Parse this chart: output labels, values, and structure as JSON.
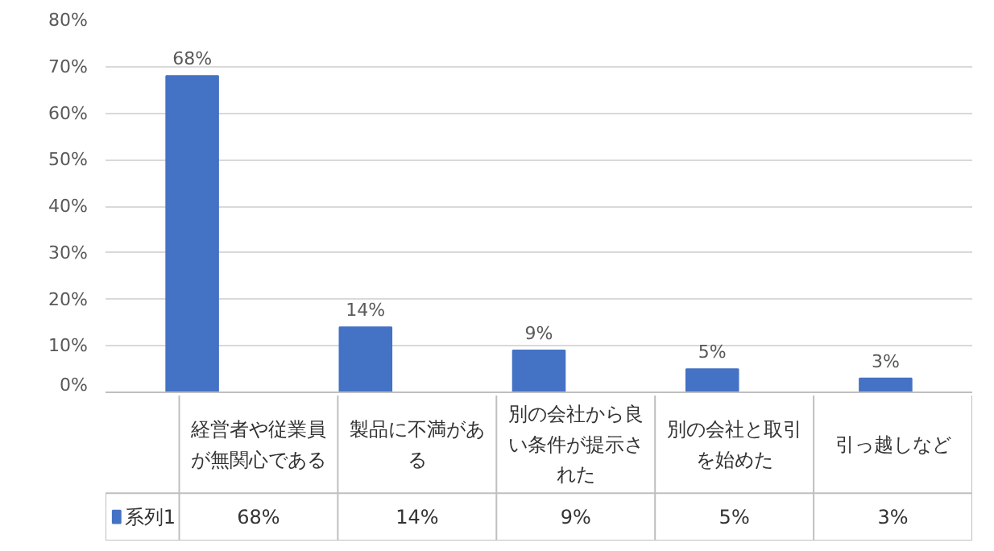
{
  "chart_data": {
    "type": "bar",
    "categories": [
      "経営者や従業員が無関心である",
      "製品に不満がある",
      "別の会社から良い条件が提示された",
      "別の会社と取引を始めた",
      "引っ越しなど"
    ],
    "series": [
      {
        "name": "系列1",
        "color": "#4472c4",
        "values": [
          68,
          14,
          9,
          5,
          3
        ],
        "value_labels": [
          "68%",
          "14%",
          "9%",
          "5%",
          "3%"
        ]
      }
    ],
    "ylim": [
      0,
      80
    ],
    "yticks": [
      {
        "value": 0,
        "label": "0%"
      },
      {
        "value": 10,
        "label": "10%"
      },
      {
        "value": 20,
        "label": "20%"
      },
      {
        "value": 30,
        "label": "30%"
      },
      {
        "value": 40,
        "label": "40%"
      },
      {
        "value": 50,
        "label": "50%"
      },
      {
        "value": 60,
        "label": "60%"
      },
      {
        "value": 70,
        "label": "70%"
      },
      {
        "value": 80,
        "label": "80%"
      }
    ],
    "grid": "y",
    "legend": "bottom"
  }
}
